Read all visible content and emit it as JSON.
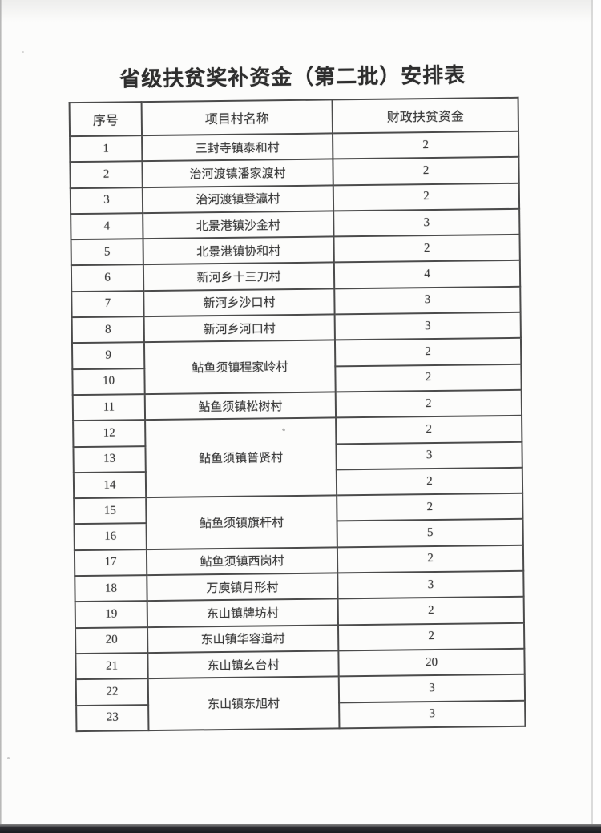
{
  "document": {
    "title": "省级扶贫奖补资金（第二批）安排表",
    "colors": {
      "paper": "#fcfcfb",
      "ink": "#3c3c3c",
      "table_line": "#4b4b4b",
      "scan_edge_bottom": "#1d1d20"
    },
    "table": {
      "columns": [
        "序号",
        "项目村名称",
        "财政扶贫资金"
      ],
      "rows": [
        {
          "no": "1",
          "village": "三封寺镇泰和村",
          "span": 1,
          "fund": "2"
        },
        {
          "no": "2",
          "village": "治河渡镇潘家渡村",
          "span": 1,
          "fund": "2"
        },
        {
          "no": "3",
          "village": "治河渡镇登瀛村",
          "span": 1,
          "fund": "2"
        },
        {
          "no": "4",
          "village": "北景港镇沙金村",
          "span": 1,
          "fund": "3"
        },
        {
          "no": "5",
          "village": "北景港镇协和村",
          "span": 1,
          "fund": "2"
        },
        {
          "no": "6",
          "village": "新河乡十三刀村",
          "span": 1,
          "fund": "4"
        },
        {
          "no": "7",
          "village": "新河乡沙口村",
          "span": 1,
          "fund": "3"
        },
        {
          "no": "8",
          "village": "新河乡河口村",
          "span": 1,
          "fund": "3"
        },
        {
          "no": "9",
          "village": "鲇鱼须镇程家岭村",
          "span": 2,
          "fund": "2"
        },
        {
          "no": "10",
          "fund": "2"
        },
        {
          "no": "11",
          "village": "鲇鱼须镇松树村",
          "span": 1,
          "fund": "2"
        },
        {
          "no": "12",
          "village": "鲇鱼须镇普贤村",
          "span": 3,
          "fund": "2"
        },
        {
          "no": "13",
          "fund": "3"
        },
        {
          "no": "14",
          "fund": "2"
        },
        {
          "no": "15",
          "village": "鲇鱼须镇旗杆村",
          "span": 2,
          "fund": "2"
        },
        {
          "no": "16",
          "fund": "5"
        },
        {
          "no": "17",
          "village": "鲇鱼须镇西岗村",
          "span": 1,
          "fund": "2"
        },
        {
          "no": "18",
          "village": "万庾镇月形村",
          "span": 1,
          "fund": "3"
        },
        {
          "no": "19",
          "village": "东山镇牌坊村",
          "span": 1,
          "fund": "2"
        },
        {
          "no": "20",
          "village": "东山镇华容道村",
          "span": 1,
          "fund": "2"
        },
        {
          "no": "21",
          "village": "东山镇幺台村",
          "span": 1,
          "fund": "20"
        },
        {
          "no": "22",
          "village": "东山镇东旭村",
          "span": 2,
          "fund": "3"
        },
        {
          "no": "23",
          "fund": "3"
        }
      ]
    }
  }
}
